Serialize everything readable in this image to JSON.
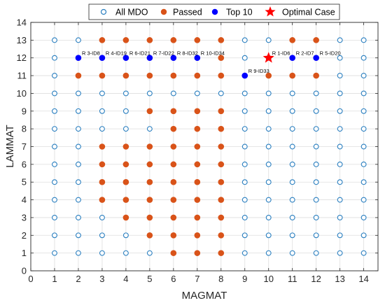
{
  "chart_data": {
    "type": "scatter",
    "xlabel": "MAGMAT",
    "ylabel": "LAMMAT",
    "xlim": [
      0,
      14.6
    ],
    "ylim": [
      0,
      14
    ],
    "x_ticks": [
      "0",
      "1",
      "2",
      "3",
      "4",
      "5",
      "6",
      "7",
      "8",
      "9",
      "10",
      "11",
      "12",
      "13",
      "14"
    ],
    "y_ticks": [
      "0",
      "1",
      "2",
      "3",
      "4",
      "5",
      "6",
      "7",
      "8",
      "9",
      "10",
      "11",
      "12",
      "13",
      "14"
    ],
    "grid": true,
    "legend_position": "top",
    "colors": {
      "all_mdo": "#2a7fc0",
      "passed": "#d95319",
      "top10": "#0000ff",
      "optimal": "#ff0000"
    },
    "series": [
      {
        "name": "All MDO",
        "marker": "open-circle",
        "grid_x": [
          1,
          14
        ],
        "grid_y": [
          1,
          13
        ]
      },
      {
        "name": "Passed",
        "marker": "filled-circle",
        "points": [
          [
            3,
            13
          ],
          [
            4,
            13
          ],
          [
            5,
            13
          ],
          [
            6,
            13
          ],
          [
            7,
            13
          ],
          [
            8,
            13
          ],
          [
            11,
            13
          ],
          [
            12,
            13
          ],
          [
            8,
            12
          ],
          [
            2,
            11
          ],
          [
            3,
            11
          ],
          [
            4,
            11
          ],
          [
            5,
            11
          ],
          [
            6,
            11
          ],
          [
            7,
            11
          ],
          [
            8,
            11
          ],
          [
            10,
            11
          ],
          [
            11,
            11
          ],
          [
            12,
            11
          ],
          [
            5,
            9
          ],
          [
            6,
            9
          ],
          [
            7,
            9
          ],
          [
            8,
            9
          ],
          [
            6,
            8
          ],
          [
            7,
            8
          ],
          [
            8,
            8
          ],
          [
            3,
            7
          ],
          [
            4,
            7
          ],
          [
            5,
            7
          ],
          [
            6,
            7
          ],
          [
            7,
            7
          ],
          [
            8,
            7
          ],
          [
            3,
            6
          ],
          [
            4,
            6
          ],
          [
            5,
            6
          ],
          [
            6,
            6
          ],
          [
            7,
            6
          ],
          [
            8,
            6
          ],
          [
            3,
            5
          ],
          [
            4,
            5
          ],
          [
            5,
            5
          ],
          [
            6,
            5
          ],
          [
            7,
            5
          ],
          [
            8,
            5
          ],
          [
            3,
            4
          ],
          [
            4,
            4
          ],
          [
            5,
            4
          ],
          [
            6,
            4
          ],
          [
            7,
            4
          ],
          [
            8,
            4
          ],
          [
            4,
            3
          ],
          [
            5,
            3
          ],
          [
            6,
            3
          ],
          [
            7,
            3
          ],
          [
            8,
            3
          ],
          [
            5,
            2
          ],
          [
            6,
            2
          ],
          [
            7,
            2
          ],
          [
            8,
            2
          ],
          [
            6,
            1
          ],
          [
            7,
            1
          ],
          [
            8,
            1
          ]
        ]
      },
      {
        "name": "Top 10",
        "marker": "filled-circle",
        "points": [
          [
            2,
            12
          ],
          [
            3,
            12
          ],
          [
            4,
            12
          ],
          [
            5,
            12
          ],
          [
            6,
            12
          ],
          [
            7,
            12
          ],
          [
            11,
            12
          ],
          [
            12,
            12
          ],
          [
            9,
            11
          ]
        ]
      },
      {
        "name": "Optimal Case",
        "marker": "star",
        "points": [
          [
            10,
            12
          ]
        ]
      }
    ],
    "annotations": [
      {
        "x": 2,
        "y": 12,
        "text": "R 3-ID8"
      },
      {
        "x": 3,
        "y": 12,
        "text": "R 4-ID19"
      },
      {
        "x": 4,
        "y": 12,
        "text": "R 6-ID21"
      },
      {
        "x": 5,
        "y": 12,
        "text": "R 7-ID22"
      },
      {
        "x": 6,
        "y": 12,
        "text": "R 8-ID32"
      },
      {
        "x": 7,
        "y": 12,
        "text": "R 10-ID34"
      },
      {
        "x": 10,
        "y": 12,
        "text": "R 1-ID6"
      },
      {
        "x": 11,
        "y": 12,
        "text": "R 2-ID7"
      },
      {
        "x": 12,
        "y": 12,
        "text": "R 5-ID20"
      },
      {
        "x": 9,
        "y": 11,
        "text": "R 9-ID33"
      }
    ]
  }
}
